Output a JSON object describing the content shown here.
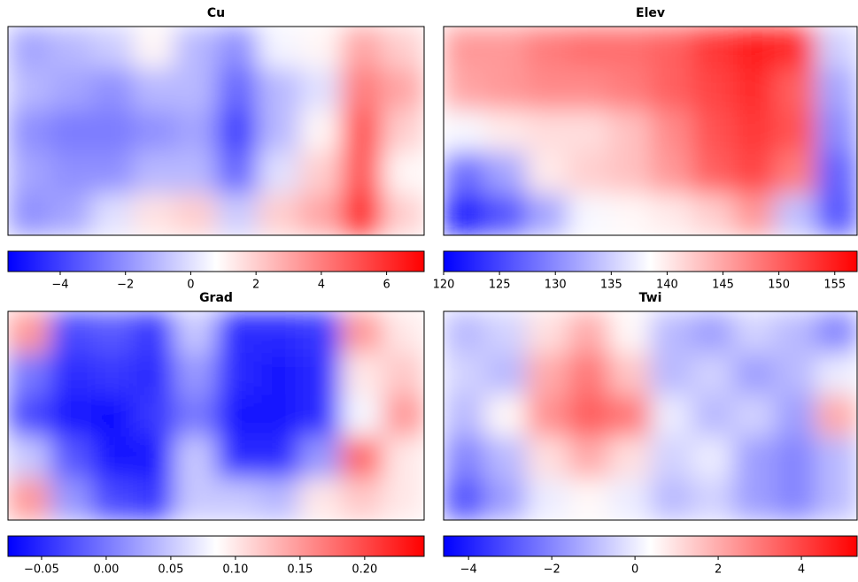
{
  "chart_data": [
    {
      "type": "heatmap",
      "title": "Cu",
      "colormap": [
        "#0000ff",
        "#ffffff",
        "#ff0000"
      ],
      "values": [
        [
          -1.5,
          -1,
          -0.5,
          1,
          -1,
          -2,
          0.5,
          1,
          3,
          2
        ],
        [
          -1,
          -1.5,
          -2,
          -1,
          -1,
          -3,
          -1,
          0,
          4,
          3
        ],
        [
          -2,
          -2.5,
          -2.5,
          -2,
          -1.5,
          -4,
          -1,
          1,
          5,
          2
        ],
        [
          -1.5,
          -2,
          -2,
          -1,
          -1,
          -3,
          0,
          2,
          5,
          1
        ],
        [
          -2,
          -1.5,
          0,
          1.5,
          2,
          -0.5,
          2,
          3,
          6,
          2
        ]
      ],
      "zlim": [
        -5.6,
        7.15
      ],
      "zticks": [
        {
          "value": -4,
          "label": "−4"
        },
        {
          "value": -2,
          "label": "−2"
        },
        0,
        2,
        4,
        6
      ]
    },
    {
      "type": "heatmap",
      "title": "Elev",
      "colormap": [
        "#0000ff",
        "#ffffff",
        "#ff0000"
      ],
      "values": [
        [
          146,
          146,
          148,
          149,
          149,
          150,
          153,
          155,
          154,
          135
        ],
        [
          145,
          146,
          147,
          147,
          148,
          150,
          152,
          154,
          150,
          132
        ],
        [
          138,
          140,
          141,
          141,
          143,
          147,
          151,
          153,
          151,
          130
        ],
        [
          128,
          132,
          140,
          142,
          143,
          146,
          150,
          152,
          148,
          127
        ],
        [
          122,
          126,
          132,
          138,
          139,
          140,
          142,
          146,
          134,
          126
        ]
      ],
      "zlim": [
        120,
        157
      ],
      "zticks": [
        120,
        125,
        130,
        135,
        140,
        145,
        150,
        155
      ]
    },
    {
      "type": "heatmap",
      "title": "Grad",
      "colormap": [
        "#0000ff",
        "#ffffff",
        "#ff0000"
      ],
      "values": [
        [
          0.15,
          -0.03,
          -0.02,
          -0.04,
          0.05,
          -0.05,
          -0.05,
          -0.04,
          0.15,
          0.1
        ],
        [
          0,
          -0.05,
          -0.04,
          -0.05,
          0.02,
          -0.05,
          -0.06,
          -0.05,
          0.1,
          0.12
        ],
        [
          -0.03,
          -0.06,
          -0.07,
          -0.04,
          0,
          -0.06,
          -0.06,
          -0.05,
          0.08,
          0.15
        ],
        [
          0.05,
          -0.02,
          -0.06,
          -0.06,
          0.05,
          -0.05,
          -0.05,
          0.02,
          0.18,
          0.1
        ],
        [
          0.15,
          0.02,
          -0.03,
          -0.04,
          0.05,
          0.05,
          0.04,
          0.1,
          0.12,
          0.1
        ]
      ],
      "zlim": [
        -0.076,
        0.246
      ],
      "zticks": [
        {
          "value": -0.05,
          "label": "−0.05"
        },
        {
          "value": 0,
          "label": "0.00"
        },
        0.05,
        {
          "value": 0.1,
          "label": "0.10"
        },
        0.15,
        {
          "value": 0.2,
          "label": "0.20"
        }
      ]
    },
    {
      "type": "heatmap",
      "title": "Twi",
      "colormap": [
        "#0000ff",
        "#ffffff",
        "#ff0000"
      ],
      "values": [
        [
          -1,
          -0.5,
          1,
          2,
          0.5,
          -1,
          -1.5,
          -0.5,
          -1,
          -2
        ],
        [
          -0.5,
          -1,
          2,
          3,
          1.5,
          -1,
          -0.5,
          -1.5,
          -1,
          0
        ],
        [
          -1,
          0.5,
          2.5,
          3.5,
          3,
          0,
          -1,
          -0.5,
          -1.5,
          2
        ],
        [
          -2,
          -1,
          1,
          2,
          1,
          -0.5,
          0,
          -1.5,
          -2,
          -1
        ],
        [
          -3,
          -1.5,
          0,
          0.5,
          0,
          -1,
          -0.5,
          -1.5,
          -2,
          -1
        ]
      ],
      "zlim": [
        -4.6,
        5.34
      ],
      "zticks": [
        {
          "value": -4,
          "label": "−4"
        },
        {
          "value": -2,
          "label": "−2"
        },
        0,
        2,
        4
      ]
    }
  ]
}
